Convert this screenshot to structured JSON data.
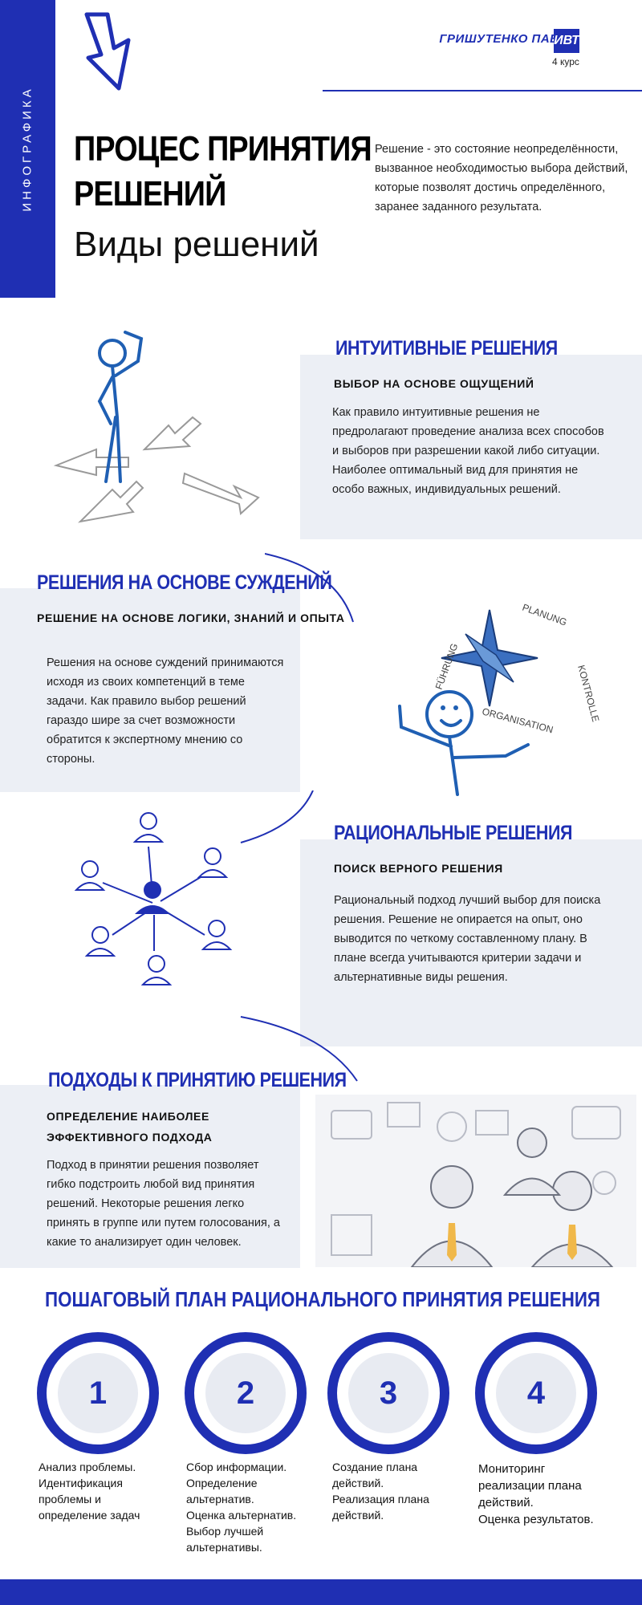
{
  "sidebar": {
    "label": "ИНФОГРАФИКА"
  },
  "header": {
    "author": "ГРИШУТЕНКО ПАВЕЛ",
    "badge": "ИВТ",
    "course": "4 курс",
    "title_line1": "ПРОЦЕС ПРИНЯТИЯ",
    "title_line2": "РЕШЕНИЙ",
    "subtitle": "Виды решений",
    "definition": "Решение - это состояние неопределённости, вызванное необходимостью выбора действий, которые позволят достичь определённого, заранее заданного результата."
  },
  "sections": [
    {
      "title": "ИНТУИТИВНЫЕ РЕШЕНИЯ",
      "subtitle": "ВЫБОР НА ОСНОВЕ ОЩУЩЕНИЙ",
      "body": "Как правило интуитивные решения не предролагают проведение анализа всех способов и выборов при разрешении какой либо ситуации. Наиболее оптимальный вид для принятия не особо важных, индивидуальных решений."
    },
    {
      "title": "РЕШЕНИЯ НА ОСНОВЕ СУЖДЕНИЙ",
      "subtitle": "РЕШЕНИЕ НА ОСНОВЕ ЛОГИКИ, ЗНАНИЙ И ОПЫТА",
      "body": "Решения на основе суждений принимаются исходя из своих компетенций в теме задачи. Как правило выбор решений гараздо шире за счет возможности обратится к экспертному мнению со стороны."
    },
    {
      "title": "РАЦИОНАЛЬНЫЕ РЕШЕНИЯ",
      "subtitle": "ПОИСК ВЕРНОГО РЕШЕНИЯ",
      "body": "Рациональный подход лучший выбор для поиска решения. Решение не опирается на опыт, оно выводится по четкому составленному плану. В плане всегда учитываются критерии задачи и альтернативные виды решения."
    },
    {
      "title": "ПОДХОДЫ К ПРИНЯТИЮ РЕШЕНИЯ",
      "subtitle": "ОПРЕДЕЛЕНИЕ НАИБОЛЕЕ ЭФФЕКТИВНОГО ПОДХОДА",
      "body": "Подход в принятии решения позволяет гибко подстроить любой вид принятия решений. Некоторые решения легко принять в группе или путем голосования, а какие то анализирует один человек."
    }
  ],
  "compass_labels": {
    "n": "PLANUNG",
    "e": "KONTROLLE",
    "s": "ORGANISATION",
    "w": "FÜHRUNG"
  },
  "plan": {
    "title": "ПОШАГОВЫЙ ПЛАН РАЦИОНАЛЬНОГО ПРИНЯТИЯ РЕШЕНИЯ",
    "steps": [
      {
        "number": "1",
        "text": "Анализ проблемы.\nИдентификация\nпроблемы и\nопределение задач"
      },
      {
        "number": "2",
        "text": "Сбор информации.\nОпределение\nальтернатив.\nОценка альтернатив.\nВыбор лучшей\nальтернативы."
      },
      {
        "number": "3",
        "text": "Создание плана\nдействий.\nРеализация плана\nдействий."
      },
      {
        "number": "4",
        "text": "Мониторинг\nреализации плана\nдействий.\nОценка результатов."
      }
    ]
  },
  "colors": {
    "accent": "#1f2fb3",
    "panel": "#eceff5"
  }
}
